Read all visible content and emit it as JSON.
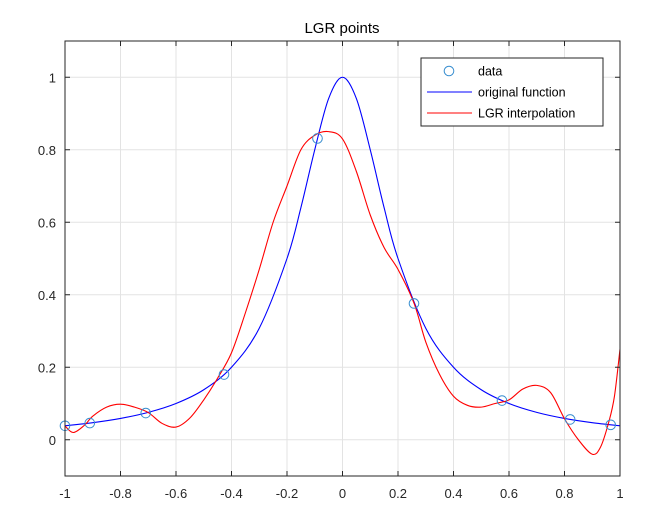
{
  "chart_data": {
    "type": "line",
    "title": "LGR points",
    "xlabel": "",
    "ylabel": "",
    "xlim": [
      -1,
      1
    ],
    "ylim": [
      -0.1,
      1.1
    ],
    "grid": true,
    "legend_position": "top-right",
    "x_ticks": [
      -1,
      -0.8,
      -0.6,
      -0.4,
      -0.2,
      0,
      0.2,
      0.4,
      0.6,
      0.8,
      1
    ],
    "x_tick_labels": [
      "-1",
      "-0.8",
      "-0.6",
      "-0.4",
      "-0.2",
      "0",
      "0.2",
      "0.4",
      "0.6",
      "0.8",
      "1"
    ],
    "y_ticks": [
      0,
      0.2,
      0.4,
      0.6,
      0.8,
      1
    ],
    "y_tick_labels": [
      "0",
      "0.2",
      "0.4",
      "0.6",
      "0.8",
      "1"
    ],
    "series": [
      {
        "name": "data",
        "style": "markers",
        "color": "#3a8fd0",
        "x": [
          -1.0,
          -0.9107,
          -0.709,
          -0.427,
          -0.0901,
          0.2577,
          0.5747,
          0.8202,
          0.9664
        ],
        "y": [
          0.0385,
          0.046,
          0.0737,
          0.1799,
          0.8311,
          0.3759,
          0.1081,
          0.0561,
          0.0411
        ]
      },
      {
        "name": "original function",
        "style": "line",
        "color": "#0000ff",
        "x": [
          -1.0,
          -0.9,
          -0.8,
          -0.7,
          -0.6,
          -0.5,
          -0.4,
          -0.3,
          -0.2,
          -0.15,
          -0.1,
          -0.05,
          0.0,
          0.05,
          0.1,
          0.15,
          0.2,
          0.3,
          0.4,
          0.5,
          0.6,
          0.7,
          0.8,
          0.9,
          1.0
        ],
        "y": [
          0.0385,
          0.0471,
          0.0588,
          0.0755,
          0.1,
          0.1379,
          0.2,
          0.3077,
          0.5,
          0.64,
          0.8,
          0.9412,
          1.0,
          0.9412,
          0.8,
          0.64,
          0.5,
          0.3077,
          0.2,
          0.1379,
          0.1,
          0.0755,
          0.0588,
          0.0471,
          0.0385
        ]
      },
      {
        "name": "LGR interpolation",
        "style": "line",
        "color": "#ff0000",
        "x": [
          -1.0,
          -0.97,
          -0.93,
          -0.9,
          -0.85,
          -0.8,
          -0.75,
          -0.7,
          -0.65,
          -0.6,
          -0.55,
          -0.5,
          -0.45,
          -0.4,
          -0.35,
          -0.3,
          -0.25,
          -0.2,
          -0.15,
          -0.1,
          -0.05,
          0.0,
          0.05,
          0.1,
          0.15,
          0.2,
          0.258,
          0.3,
          0.35,
          0.4,
          0.45,
          0.5,
          0.55,
          0.6,
          0.65,
          0.7,
          0.75,
          0.8,
          0.85,
          0.9,
          0.93,
          0.96,
          0.98,
          1.0
        ],
        "y": [
          0.038,
          0.02,
          0.04,
          0.065,
          0.09,
          0.098,
          0.09,
          0.075,
          0.045,
          0.035,
          0.06,
          0.11,
          0.17,
          0.24,
          0.35,
          0.47,
          0.6,
          0.7,
          0.8,
          0.84,
          0.85,
          0.83,
          0.74,
          0.62,
          0.53,
          0.47,
          0.376,
          0.27,
          0.18,
          0.12,
          0.095,
          0.09,
          0.1,
          0.11,
          0.14,
          0.15,
          0.13,
          0.058,
          0.0,
          -0.04,
          -0.02,
          0.05,
          0.12,
          0.25
        ]
      }
    ]
  }
}
